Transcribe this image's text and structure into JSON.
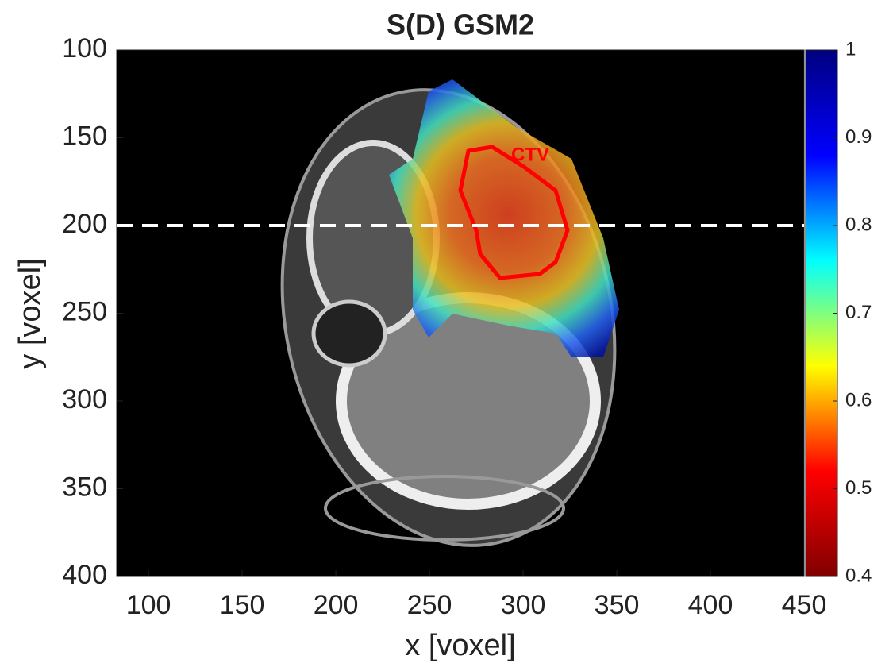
{
  "chart_data": {
    "type": "heatmap",
    "title": "S(D) GSM2",
    "x_label": "x [voxel]",
    "y_label": "y [voxel]",
    "xlim": [
      83,
      450
    ],
    "xticks": [
      100,
      150,
      200,
      250,
      300,
      350,
      400,
      450
    ],
    "ylim": [
      100,
      400
    ],
    "yticks": [
      100,
      150,
      200,
      250,
      300,
      350,
      400
    ],
    "y_reversed": true,
    "clim": [
      0.4,
      1
    ],
    "cticks": [
      0.4,
      0.5,
      0.6,
      0.7,
      0.8,
      0.9,
      1
    ],
    "colormap": "jet",
    "hline": 200,
    "annotation": "CTV"
  }
}
